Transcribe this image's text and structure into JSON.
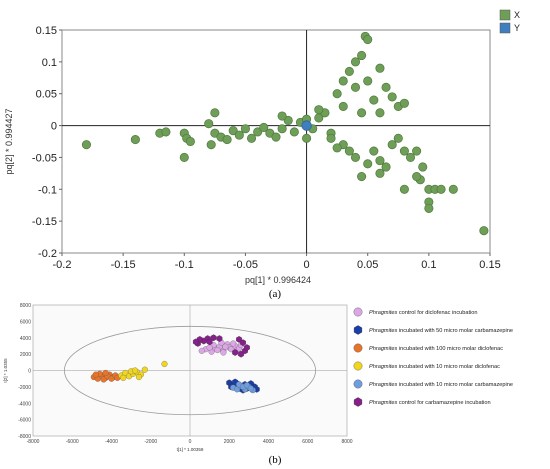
{
  "chart_data": [
    {
      "type": "scatter",
      "panel_label": "(a)",
      "xlabel": "pq[1] * 0.996424",
      "ylabel": "pq[2] * 0.994427",
      "xlim": [
        -0.2,
        0.15
      ],
      "ylim": [
        -0.2,
        0.15
      ],
      "x_ticks": [
        "-0.2",
        "-0.15",
        "-0.1",
        "-0.05",
        "0",
        "0.05",
        "0.1",
        "0.15"
      ],
      "y_ticks": [
        "0.15",
        "0.1",
        "0.05",
        "0",
        "-0.05",
        "-0.1",
        "-0.15",
        "-0.2"
      ],
      "origin_crosshair": true,
      "legend_position": "top-right",
      "colors": {
        "X": "#6e9e58",
        "Y": "#3f7fbf"
      },
      "series": [
        {
          "name": "X",
          "points": [
            [
              -0.18,
              -0.03
            ],
            [
              -0.14,
              -0.022
            ],
            [
              -0.12,
              -0.012
            ],
            [
              -0.115,
              -0.01
            ],
            [
              -0.1,
              -0.012
            ],
            [
              -0.1,
              -0.05
            ],
            [
              -0.098,
              -0.02
            ],
            [
              -0.095,
              -0.025
            ],
            [
              -0.08,
              0.003
            ],
            [
              -0.078,
              -0.03
            ],
            [
              -0.075,
              -0.012
            ],
            [
              -0.07,
              -0.018
            ],
            [
              -0.065,
              -0.022
            ],
            [
              -0.06,
              -0.008
            ],
            [
              -0.055,
              -0.015
            ],
            [
              -0.05,
              -0.005
            ],
            [
              -0.045,
              -0.02
            ],
            [
              -0.04,
              -0.01
            ],
            [
              -0.035,
              -0.003
            ],
            [
              -0.03,
              -0.012
            ],
            [
              -0.025,
              -0.018
            ],
            [
              -0.02,
              -0.005
            ],
            [
              -0.015,
              0.008
            ],
            [
              -0.01,
              -0.01
            ],
            [
              -0.005,
              0.005
            ],
            [
              0.0,
              0.01
            ],
            [
              0.005,
              -0.005
            ],
            [
              0.01,
              0.012
            ],
            [
              0.015,
              0.02
            ],
            [
              0.02,
              -0.012
            ],
            [
              -0.075,
              0.02
            ],
            [
              -0.02,
              0.015
            ],
            [
              0.0,
              -0.02
            ],
            [
              0.01,
              0.025
            ],
            [
              0.03,
              0.07
            ],
            [
              0.035,
              0.085
            ],
            [
              0.04,
              0.1
            ],
            [
              0.045,
              0.11
            ],
            [
              0.048,
              0.14
            ],
            [
              0.05,
              0.135
            ],
            [
              0.06,
              0.09
            ],
            [
              0.065,
              0.06
            ],
            [
              0.07,
              0.045
            ],
            [
              0.075,
              0.03
            ],
            [
              0.08,
              0.035
            ],
            [
              0.05,
              0.07
            ],
            [
              0.025,
              0.05
            ],
            [
              0.04,
              0.06
            ],
            [
              0.055,
              0.04
            ],
            [
              0.03,
              0.03
            ],
            [
              0.045,
              0.02
            ],
            [
              0.06,
              0.02
            ],
            [
              0.02,
              -0.02
            ],
            [
              0.03,
              -0.03
            ],
            [
              0.04,
              -0.05
            ],
            [
              0.05,
              -0.06
            ],
            [
              0.055,
              -0.04
            ],
            [
              0.06,
              -0.055
            ],
            [
              0.065,
              -0.065
            ],
            [
              0.07,
              -0.03
            ],
            [
              0.075,
              -0.02
            ],
            [
              0.08,
              -0.04
            ],
            [
              0.085,
              -0.05
            ],
            [
              0.09,
              -0.04
            ],
            [
              0.095,
              -0.065
            ],
            [
              0.1,
              -0.1
            ],
            [
              0.1,
              -0.12
            ],
            [
              0.105,
              -0.1
            ],
            [
              0.11,
              -0.1
            ],
            [
              0.12,
              -0.1
            ],
            [
              0.145,
              -0.165
            ],
            [
              0.093,
              -0.085
            ],
            [
              0.09,
              -0.08
            ],
            [
              0.06,
              -0.075
            ],
            [
              0.045,
              -0.08
            ],
            [
              0.035,
              -0.04
            ],
            [
              0.025,
              -0.035
            ],
            [
              0.08,
              -0.1
            ],
            [
              0.1,
              -0.13
            ]
          ]
        },
        {
          "name": "Y",
          "points": [
            [
              0.0,
              0.0
            ]
          ]
        }
      ]
    },
    {
      "type": "scatter",
      "panel_label": "(b)",
      "xlabel": "t[1] * 1.00359",
      "ylabel": "t[2] * 1.0355",
      "xlim": [
        -8000,
        8000
      ],
      "ylim": [
        -8000,
        8000
      ],
      "x_ticks": [
        "-8000",
        "-6000",
        "-4000",
        "-2000",
        "0",
        "2000",
        "4000",
        "6000",
        "8000"
      ],
      "y_ticks": [
        "8000",
        "6000",
        "4000",
        "2000",
        "0",
        "-2000",
        "-4000",
        "-6000",
        "-8000"
      ],
      "ellipse": {
        "rx": 6400,
        "ry": 5400
      },
      "legend_position": "right",
      "series": [
        {
          "name": "Phragmites control for diclofenac incubation",
          "italic_prefix": "Phragmites",
          "rest": " control for diclofenac incubation",
          "color": "#dca7e6",
          "marker": "circle",
          "points": [
            [
              800,
              2600
            ],
            [
              1100,
              2300
            ],
            [
              1300,
              2700
            ],
            [
              1500,
              2900
            ],
            [
              1700,
              2400
            ],
            [
              1900,
              3200
            ],
            [
              2000,
              2800
            ],
            [
              2100,
              2600
            ],
            [
              2300,
              3000
            ],
            [
              2400,
              2500
            ],
            [
              1200,
              3100
            ],
            [
              1600,
              3400
            ],
            [
              1800,
              2900
            ],
            [
              2200,
              3300
            ],
            [
              1400,
              2500
            ],
            [
              600,
              2400
            ],
            [
              1000,
              2800
            ],
            [
              2500,
              2700
            ],
            [
              2600,
              3100
            ],
            [
              1700,
              2200
            ]
          ]
        },
        {
          "name": "Phragmites incubated with 50 micro molar carbamazepine",
          "italic_prefix": "Phragmites",
          "rest": " incubated with 50 micro molar carbamazepine",
          "color": "#1c3ea8",
          "marker": "hexagon",
          "points": [
            [
              2000,
              -1500
            ],
            [
              2200,
              -1800
            ],
            [
              2400,
              -1600
            ],
            [
              2600,
              -2000
            ],
            [
              2800,
              -1700
            ],
            [
              3000,
              -2100
            ],
            [
              3200,
              -1900
            ],
            [
              3400,
              -2300
            ],
            [
              2500,
              -2200
            ],
            [
              2100,
              -2000
            ],
            [
              2700,
              -2400
            ],
            [
              3100,
              -1600
            ],
            [
              2300,
              -1400
            ],
            [
              2900,
              -2200
            ],
            [
              3300,
              -2000
            ]
          ]
        },
        {
          "name": "Phragmites incubated with 100 micro molar diclofenac",
          "italic_prefix": "Phragmites",
          "rest": " incubated with 100 micro molar diclofenac",
          "color": "#e8742a",
          "marker": "circle",
          "points": [
            [
              -4900,
              -800
            ],
            [
              -4700,
              -1000
            ],
            [
              -4500,
              -600
            ],
            [
              -4300,
              -900
            ],
            [
              -4100,
              -500
            ],
            [
              -3900,
              -800
            ],
            [
              -4600,
              -400
            ],
            [
              -4400,
              -1100
            ],
            [
              -4200,
              -700
            ],
            [
              -4000,
              -1000
            ],
            [
              -4800,
              -500
            ],
            [
              -3800,
              -600
            ],
            [
              -4300,
              -300
            ],
            [
              -3700,
              -900
            ]
          ]
        },
        {
          "name": "Phragmites incubated with 10 micro molar diclofenac",
          "italic_prefix": "Phragmites",
          "rest": " incubated with 10 micro molar diclofenac",
          "color": "#f2d61e",
          "marker": "circle",
          "points": [
            [
              -3500,
              -600
            ],
            [
              -3300,
              -300
            ],
            [
              -3100,
              -700
            ],
            [
              -2900,
              -400
            ],
            [
              -2700,
              -200
            ],
            [
              -2500,
              -500
            ],
            [
              -2300,
              100
            ],
            [
              -3400,
              -900
            ],
            [
              -3000,
              -100
            ],
            [
              -1300,
              800
            ],
            [
              -2600,
              -800
            ],
            [
              -2800,
              0
            ]
          ]
        },
        {
          "name": "Phragmites incubated with 10 micro molar carbamazepine",
          "italic_prefix": "Phragmites",
          "rest": " incubated with 10 micro molar carbamazepine",
          "color": "#6f9ee0",
          "marker": "circle",
          "points": [
            [
              2200,
              -2100
            ],
            [
              2400,
              -2300
            ],
            [
              2600,
              -1900
            ],
            [
              2800,
              -2300
            ],
            [
              3000,
              -2000
            ],
            [
              3200,
              -2400
            ],
            [
              2500,
              -1700
            ],
            [
              2700,
              -2000
            ],
            [
              2900,
              -1800
            ],
            [
              3100,
              -2200
            ]
          ]
        },
        {
          "name": "Phragmites control for carbamazepine incubation",
          "italic_prefix": "Phragmites",
          "rest": " control for carbamazepine incubation",
          "color": "#86208a",
          "marker": "hexagon",
          "points": [
            [
              400,
              3300
            ],
            [
              700,
              3600
            ],
            [
              900,
              3900
            ],
            [
              1200,
              4000
            ],
            [
              500,
              3800
            ],
            [
              1000,
              3500
            ],
            [
              2300,
              2200
            ],
            [
              2600,
              2000
            ],
            [
              2800,
              2400
            ],
            [
              2500,
              3800
            ],
            [
              2700,
              3400
            ],
            [
              1500,
              3900
            ],
            [
              300,
              3500
            ],
            [
              2900,
              2800
            ]
          ]
        }
      ]
    }
  ]
}
